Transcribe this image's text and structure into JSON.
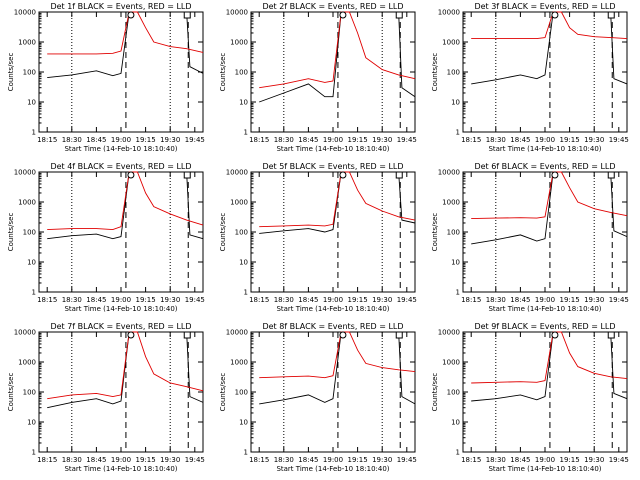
{
  "chart_data": [
    {
      "type": "line",
      "title": "Det 1f BLACK = Events, RED = LLD",
      "xlabel": "Start Time (14-Feb-10 18:10:40)",
      "ylabel": "Counts/sec",
      "x_ticks": [
        "18:15",
        "18:30",
        "18:45",
        "19:00",
        "19:15",
        "19:30",
        "19:45"
      ],
      "y_ticks": [
        "1",
        "10",
        "100",
        "1000",
        "10000"
      ],
      "ylim": [
        1,
        10000
      ],
      "markers": {
        "dotted": [
          "18:30",
          "19:30"
        ],
        "dashed": [
          "19:03",
          "19:41"
        ]
      },
      "series": [
        {
          "name": "Events",
          "color": "#000000",
          "x": [
            "18:15",
            "18:30",
            "18:45",
            "18:55",
            "19:00",
            "19:05",
            "19:10",
            "19:20",
            "19:40",
            "19:42",
            "19:50"
          ],
          "y": [
            65,
            80,
            110,
            75,
            90,
            10000,
            10000,
            10000,
            10000,
            150,
            90
          ]
        },
        {
          "name": "LLD",
          "color": "#e00000",
          "x": [
            "18:15",
            "18:30",
            "18:45",
            "18:55",
            "19:00",
            "19:05",
            "19:10",
            "19:15",
            "19:20",
            "19:30",
            "19:40",
            "19:50"
          ],
          "y": [
            400,
            400,
            400,
            420,
            500,
            10000,
            10000,
            3000,
            1000,
            700,
            600,
            450
          ]
        }
      ]
    },
    {
      "type": "line",
      "title": "Det 2f BLACK = Events, RED = LLD",
      "xlabel": "Start Time (14-Feb-10 18:10:40)",
      "ylabel": "Counts/sec",
      "x_ticks": [
        "18:15",
        "18:30",
        "18:45",
        "19:00",
        "19:15",
        "19:30",
        "19:45"
      ],
      "y_ticks": [
        "1",
        "10",
        "100",
        "1000",
        "10000"
      ],
      "ylim": [
        1,
        10000
      ],
      "markers": {
        "dotted": [
          "18:30",
          "19:30"
        ],
        "dashed": [
          "19:03",
          "19:41"
        ]
      },
      "series": [
        {
          "name": "Events",
          "color": "#000000",
          "x": [
            "18:15",
            "18:30",
            "18:45",
            "18:55",
            "19:00",
            "19:05",
            "19:10",
            "19:20",
            "19:40",
            "19:42",
            "19:50"
          ],
          "y": [
            10,
            20,
            40,
            15,
            15,
            10000,
            10000,
            10000,
            10000,
            30,
            15
          ]
        },
        {
          "name": "LLD",
          "color": "#e00000",
          "x": [
            "18:15",
            "18:30",
            "18:45",
            "18:55",
            "19:00",
            "19:05",
            "19:10",
            "19:15",
            "19:20",
            "19:30",
            "19:40",
            "19:50"
          ],
          "y": [
            30,
            40,
            60,
            45,
            50,
            10000,
            10000,
            2000,
            300,
            120,
            80,
            60
          ]
        }
      ]
    },
    {
      "type": "line",
      "title": "Det 3f BLACK = Events, RED = LLD",
      "xlabel": "Start Time (14-Feb-10 18:10:40)",
      "ylabel": "Counts/sec",
      "x_ticks": [
        "18:15",
        "18:30",
        "18:45",
        "19:00",
        "19:15",
        "19:30",
        "19:45"
      ],
      "y_ticks": [
        "1",
        "10",
        "100",
        "1000",
        "10000"
      ],
      "ylim": [
        1,
        10000
      ],
      "markers": {
        "dotted": [
          "18:30",
          "19:30"
        ],
        "dashed": [
          "19:03",
          "19:41"
        ]
      },
      "series": [
        {
          "name": "Events",
          "color": "#000000",
          "x": [
            "18:15",
            "18:30",
            "18:45",
            "18:55",
            "19:00",
            "19:05",
            "19:10",
            "19:20",
            "19:40",
            "19:42",
            "19:50"
          ],
          "y": [
            40,
            55,
            80,
            60,
            80,
            10000,
            10000,
            10000,
            10000,
            60,
            40
          ]
        },
        {
          "name": "LLD",
          "color": "#e00000",
          "x": [
            "18:15",
            "18:30",
            "18:45",
            "18:55",
            "19:00",
            "19:05",
            "19:10",
            "19:15",
            "19:20",
            "19:30",
            "19:40",
            "19:50"
          ],
          "y": [
            1300,
            1300,
            1300,
            1300,
            1400,
            10000,
            10000,
            3000,
            1800,
            1500,
            1400,
            1300
          ]
        }
      ]
    },
    {
      "type": "line",
      "title": "Det 4f BLACK = Events, RED = LLD",
      "xlabel": "Start Time (14-Feb-10 18:10:40)",
      "ylabel": "Counts/sec",
      "x_ticks": [
        "18:15",
        "18:30",
        "18:45",
        "19:00",
        "19:15",
        "19:30",
        "19:45"
      ],
      "y_ticks": [
        "1",
        "10",
        "100",
        "1000",
        "10000"
      ],
      "ylim": [
        1,
        10000
      ],
      "markers": {
        "dotted": [
          "18:30",
          "19:30"
        ],
        "dashed": [
          "19:03",
          "19:41"
        ]
      },
      "series": [
        {
          "name": "Events",
          "color": "#000000",
          "x": [
            "18:15",
            "18:30",
            "18:45",
            "18:55",
            "19:00",
            "19:05",
            "19:10",
            "19:20",
            "19:40",
            "19:42",
            "19:50"
          ],
          "y": [
            60,
            75,
            85,
            60,
            70,
            10000,
            10000,
            10000,
            10000,
            80,
            60
          ]
        },
        {
          "name": "LLD",
          "color": "#e00000",
          "x": [
            "18:15",
            "18:30",
            "18:45",
            "18:55",
            "19:00",
            "19:05",
            "19:10",
            "19:15",
            "19:20",
            "19:30",
            "19:40",
            "19:50"
          ],
          "y": [
            120,
            130,
            130,
            120,
            150,
            10000,
            10000,
            2000,
            700,
            400,
            250,
            170
          ]
        }
      ]
    },
    {
      "type": "line",
      "title": "Det 5f BLACK = Events, RED = LLD",
      "xlabel": "Start Time (14-Feb-10 18:10:40)",
      "ylabel": "Counts/sec",
      "x_ticks": [
        "18:15",
        "18:30",
        "18:45",
        "19:00",
        "19:15",
        "19:30",
        "19:45"
      ],
      "y_ticks": [
        "1",
        "10",
        "100",
        "1000",
        "10000"
      ],
      "ylim": [
        1,
        10000
      ],
      "markers": {
        "dotted": [
          "18:30",
          "19:30"
        ],
        "dashed": [
          "19:03",
          "19:41"
        ]
      },
      "series": [
        {
          "name": "Events",
          "color": "#000000",
          "x": [
            "18:15",
            "18:30",
            "18:45",
            "18:55",
            "19:00",
            "19:05",
            "19:10",
            "19:20",
            "19:40",
            "19:42",
            "19:50"
          ],
          "y": [
            90,
            110,
            130,
            100,
            120,
            10000,
            10000,
            10000,
            10000,
            250,
            200
          ]
        },
        {
          "name": "LLD",
          "color": "#e00000",
          "x": [
            "18:15",
            "18:30",
            "18:45",
            "18:55",
            "19:00",
            "19:05",
            "19:10",
            "19:15",
            "19:20",
            "19:30",
            "19:40",
            "19:50"
          ],
          "y": [
            150,
            160,
            170,
            160,
            180,
            10000,
            10000,
            2500,
            900,
            500,
            320,
            250
          ]
        }
      ]
    },
    {
      "type": "line",
      "title": "Det 6f BLACK = Events, RED = LLD",
      "xlabel": "Start Time (14-Feb-10 18:10:40)",
      "ylabel": "Counts/sec",
      "x_ticks": [
        "18:15",
        "18:30",
        "18:45",
        "19:00",
        "19:15",
        "19:30",
        "19:45"
      ],
      "y_ticks": [
        "1",
        "10",
        "100",
        "1000",
        "10000"
      ],
      "ylim": [
        1,
        10000
      ],
      "markers": {
        "dotted": [
          "18:30",
          "19:30"
        ],
        "dashed": [
          "19:03",
          "19:41"
        ]
      },
      "series": [
        {
          "name": "Events",
          "color": "#000000",
          "x": [
            "18:15",
            "18:30",
            "18:45",
            "18:55",
            "19:00",
            "19:05",
            "19:10",
            "19:20",
            "19:40",
            "19:42",
            "19:50"
          ],
          "y": [
            40,
            55,
            80,
            50,
            60,
            10000,
            10000,
            10000,
            10000,
            110,
            70
          ]
        },
        {
          "name": "LLD",
          "color": "#e00000",
          "x": [
            "18:15",
            "18:30",
            "18:45",
            "18:55",
            "19:00",
            "19:05",
            "19:10",
            "19:15",
            "19:20",
            "19:30",
            "19:40",
            "19:50"
          ],
          "y": [
            280,
            290,
            300,
            290,
            320,
            10000,
            10000,
            3000,
            1000,
            600,
            450,
            350
          ]
        }
      ]
    },
    {
      "type": "line",
      "title": "Det 7f BLACK = Events, RED = LLD",
      "xlabel": "Start Time (14-Feb-10 18:10:40)",
      "ylabel": "Counts/sec",
      "x_ticks": [
        "18:15",
        "18:30",
        "18:45",
        "19:00",
        "19:15",
        "19:30",
        "19:45"
      ],
      "y_ticks": [
        "1",
        "10",
        "100",
        "1000",
        "10000"
      ],
      "ylim": [
        1,
        10000
      ],
      "markers": {
        "dotted": [
          "18:30",
          "19:30"
        ],
        "dashed": [
          "19:03",
          "19:41"
        ]
      },
      "series": [
        {
          "name": "Events",
          "color": "#000000",
          "x": [
            "18:15",
            "18:30",
            "18:45",
            "18:55",
            "19:00",
            "19:05",
            "19:10",
            "19:20",
            "19:40",
            "19:42",
            "19:50"
          ],
          "y": [
            30,
            45,
            60,
            40,
            50,
            10000,
            10000,
            10000,
            10000,
            70,
            45
          ]
        },
        {
          "name": "LLD",
          "color": "#e00000",
          "x": [
            "18:15",
            "18:30",
            "18:45",
            "18:55",
            "19:00",
            "19:05",
            "19:10",
            "19:15",
            "19:20",
            "19:30",
            "19:40",
            "19:50"
          ],
          "y": [
            60,
            80,
            90,
            70,
            80,
            10000,
            10000,
            1500,
            400,
            200,
            150,
            110
          ]
        }
      ]
    },
    {
      "type": "line",
      "title": "Det 8f BLACK = Events, RED = LLD",
      "xlabel": "Start Time (14-Feb-10 18:10:40)",
      "ylabel": "Counts/sec",
      "x_ticks": [
        "18:15",
        "18:30",
        "18:45",
        "19:00",
        "19:15",
        "19:30",
        "19:45"
      ],
      "y_ticks": [
        "1",
        "10",
        "100",
        "1000",
        "10000"
      ],
      "ylim": [
        1,
        10000
      ],
      "markers": {
        "dotted": [
          "18:30",
          "19:30"
        ],
        "dashed": [
          "19:03",
          "19:41"
        ]
      },
      "series": [
        {
          "name": "Events",
          "color": "#000000",
          "x": [
            "18:15",
            "18:30",
            "18:45",
            "18:55",
            "19:00",
            "19:05",
            "19:10",
            "19:20",
            "19:40",
            "19:42",
            "19:50"
          ],
          "y": [
            40,
            55,
            80,
            45,
            60,
            10000,
            10000,
            10000,
            10000,
            70,
            40
          ]
        },
        {
          "name": "LLD",
          "color": "#e00000",
          "x": [
            "18:15",
            "18:30",
            "18:45",
            "18:55",
            "19:00",
            "19:05",
            "19:10",
            "19:15",
            "19:20",
            "19:30",
            "19:40",
            "19:50"
          ],
          "y": [
            300,
            320,
            340,
            300,
            350,
            10000,
            10000,
            2500,
            900,
            650,
            550,
            480
          ]
        }
      ]
    },
    {
      "type": "line",
      "title": "Det 9f BLACK = Events, RED = LLD",
      "xlabel": "Start Time (14-Feb-10 18:10:40)",
      "ylabel": "Counts/sec",
      "x_ticks": [
        "18:15",
        "18:30",
        "18:45",
        "19:00",
        "19:15",
        "19:30",
        "19:45"
      ],
      "y_ticks": [
        "1",
        "10",
        "100",
        "1000",
        "10000"
      ],
      "ylim": [
        1,
        10000
      ],
      "markers": {
        "dotted": [
          "18:30",
          "19:30"
        ],
        "dashed": [
          "19:03",
          "19:41"
        ]
      },
      "series": [
        {
          "name": "Events",
          "color": "#000000",
          "x": [
            "18:15",
            "18:30",
            "18:45",
            "18:55",
            "19:00",
            "19:05",
            "19:10",
            "19:20",
            "19:40",
            "19:42",
            "19:50"
          ],
          "y": [
            50,
            60,
            80,
            55,
            70,
            10000,
            10000,
            10000,
            10000,
            90,
            60
          ]
        },
        {
          "name": "LLD",
          "color": "#e00000",
          "x": [
            "18:15",
            "18:30",
            "18:45",
            "18:55",
            "19:00",
            "19:05",
            "19:10",
            "19:15",
            "19:20",
            "19:30",
            "19:40",
            "19:50"
          ],
          "y": [
            200,
            210,
            220,
            210,
            240,
            10000,
            10000,
            2000,
            700,
            420,
            320,
            280
          ]
        }
      ]
    }
  ]
}
